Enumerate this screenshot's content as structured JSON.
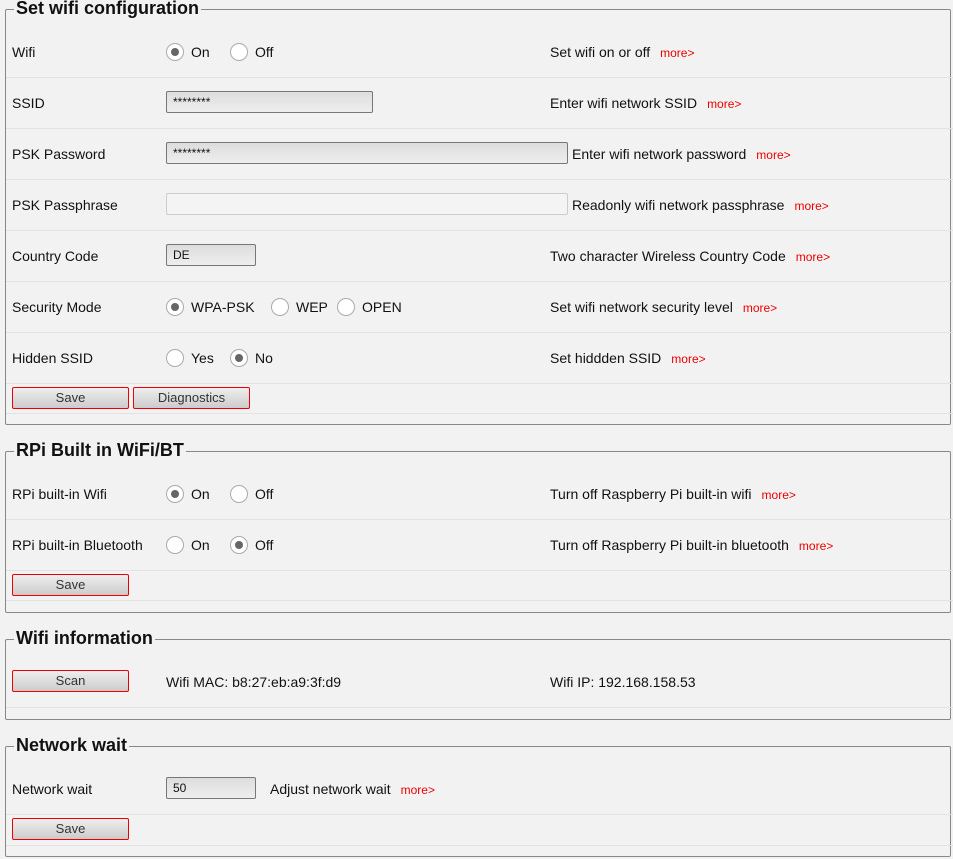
{
  "wifi_config": {
    "title": "Set wifi configuration",
    "wifi": {
      "label": "Wifi",
      "options": [
        "On",
        "Off"
      ],
      "selected": "On",
      "desc": "Set wifi on or off"
    },
    "ssid": {
      "label": "SSID",
      "value": "********",
      "desc": "Enter wifi network SSID"
    },
    "psk_password": {
      "label": "PSK Password",
      "value": "********",
      "desc": "Enter wifi network password"
    },
    "psk_passphrase": {
      "label": "PSK Passphrase",
      "value": "",
      "desc": "Readonly wifi network passphrase"
    },
    "country": {
      "label": "Country Code",
      "value": "DE",
      "desc": "Two character Wireless Country Code"
    },
    "security": {
      "label": "Security Mode",
      "options": [
        "WPA-PSK",
        "WEP",
        "OPEN"
      ],
      "selected": "WPA-PSK",
      "desc": "Set wifi network security level"
    },
    "hidden": {
      "label": "Hidden SSID",
      "options": [
        "Yes",
        "No"
      ],
      "selected": "No",
      "desc": "Set hiddden SSID"
    },
    "save": "Save",
    "diagnostics": "Diagnostics"
  },
  "rpi": {
    "title": "RPi Built in WiFi/BT",
    "wifi": {
      "label": "RPi built-in Wifi",
      "options": [
        "On",
        "Off"
      ],
      "selected": "On",
      "desc": "Turn off Raspberry Pi built-in wifi"
    },
    "bt": {
      "label": "RPi built-in Bluetooth",
      "options": [
        "On",
        "Off"
      ],
      "selected": "Off",
      "desc": "Turn off Raspberry Pi built-in bluetooth"
    },
    "save": "Save"
  },
  "info": {
    "title": "Wifi information",
    "scan": "Scan",
    "mac": "Wifi MAC: b8:27:eb:a9:3f:d9",
    "ip": "Wifi IP: 192.168.158.53"
  },
  "netwait": {
    "title": "Network wait",
    "label": "Network wait",
    "value": "50",
    "desc": "Adjust network wait",
    "save": "Save"
  },
  "more": "more>",
  "colors": {
    "accent": "#ee0000"
  }
}
